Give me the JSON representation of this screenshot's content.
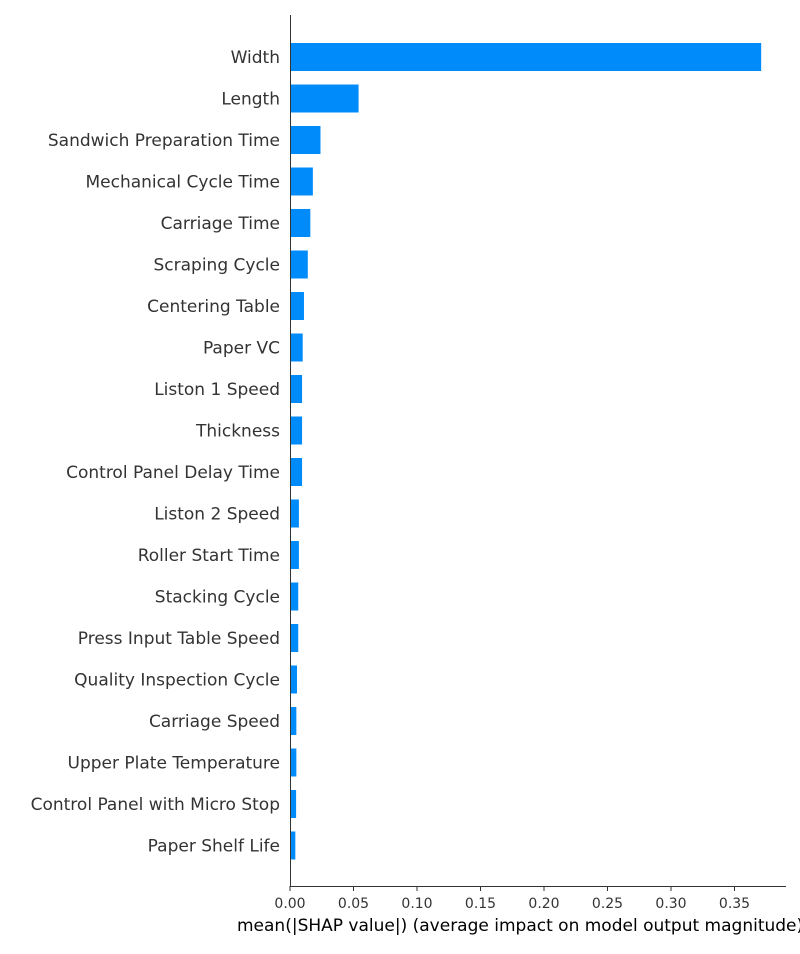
{
  "chart_data": {
    "type": "bar",
    "orientation": "horizontal",
    "title": "",
    "xlabel": "mean(|SHAP value|) (average impact on model output magnitude)",
    "ylabel": "",
    "bar_color": "#008bfb",
    "xlim": [
      0,
      0.39
    ],
    "xticks": [
      "0.00",
      "0.05",
      "0.10",
      "0.15",
      "0.20",
      "0.25",
      "0.30",
      "0.35"
    ],
    "grid": false,
    "legend": "none",
    "categories": [
      "Width",
      "Length",
      "Sandwich Preparation Time",
      "Mechanical Cycle Time",
      "Carriage Time",
      "Scraping Cycle",
      "Centering Table",
      "Paper VC",
      "Liston 1 Speed",
      "Thickness",
      "Control Panel Delay Time",
      "Liston 2 Speed",
      "Roller Start Time",
      "Stacking Cycle",
      "Press Input Table Speed",
      "Quality Inspection Cycle",
      "Carriage Speed",
      "Upper Plate Temperature",
      "Control Panel with Micro Stop",
      "Paper Shelf Life"
    ],
    "values": [
      0.371,
      0.054,
      0.024,
      0.018,
      0.016,
      0.014,
      0.011,
      0.01,
      0.0095,
      0.0095,
      0.0095,
      0.007,
      0.007,
      0.0065,
      0.0065,
      0.0055,
      0.005,
      0.005,
      0.0048,
      0.0042
    ]
  }
}
